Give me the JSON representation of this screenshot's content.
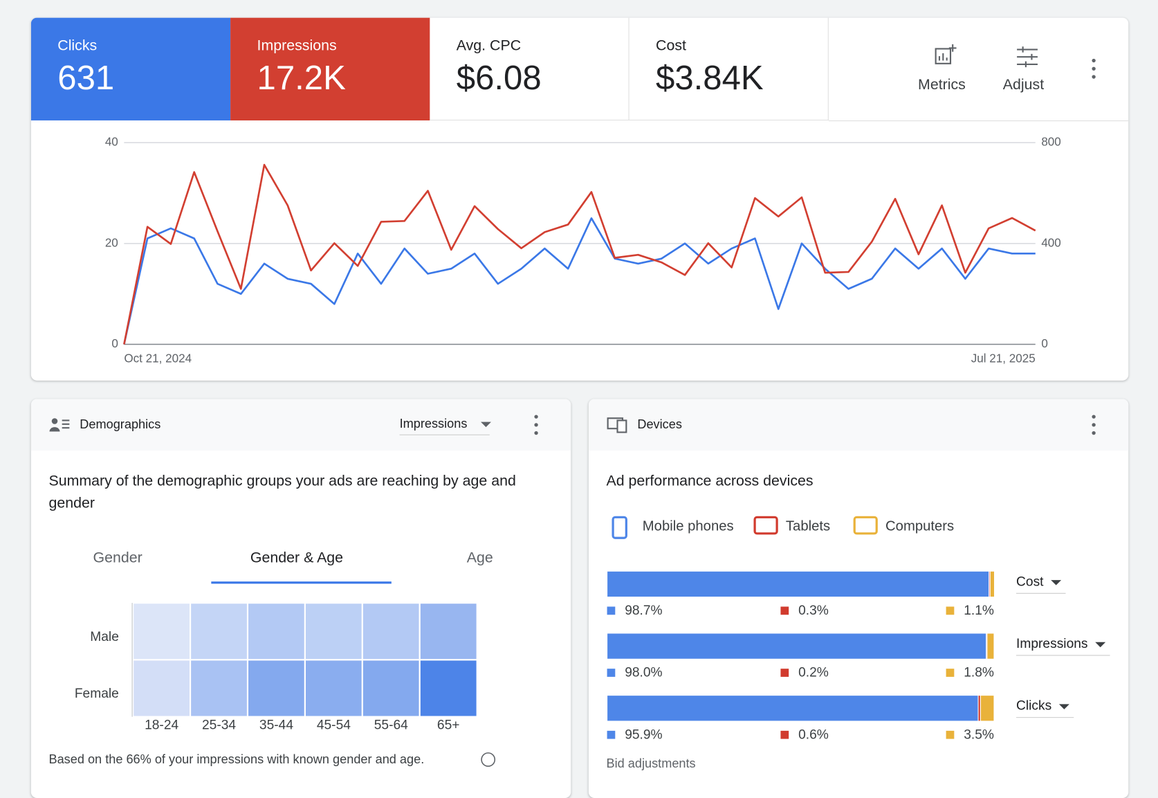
{
  "chart_data": [
    {
      "type": "line",
      "categories": [
        "Oct 21, 2024",
        null,
        null,
        null,
        null,
        null,
        null,
        null,
        null,
        null,
        null,
        null,
        null,
        null,
        null,
        null,
        null,
        null,
        null,
        null,
        null,
        null,
        null,
        null,
        null,
        null,
        null,
        null,
        null,
        null,
        null,
        null,
        null,
        null,
        null,
        null,
        null,
        null,
        null,
        "Jul 21, 2025"
      ],
      "series": [
        {
          "name": "Clicks",
          "total": "631",
          "color": "#3b78e7",
          "axis": "y",
          "values": [
            0,
            21,
            23,
            21,
            12,
            10,
            16,
            13,
            12,
            8,
            18,
            12,
            19,
            14,
            15,
            18,
            12,
            15,
            19,
            15,
            25,
            17,
            16,
            17,
            20,
            16,
            19,
            21,
            7,
            20,
            15,
            11,
            13,
            19,
            15,
            19,
            13,
            19,
            18,
            18
          ]
        },
        {
          "name": "Impressions",
          "total": "17.2K",
          "color": "#d23f31",
          "axis": "y2",
          "values": [
            0,
            466,
            398,
            683,
            448,
            220,
            712,
            551,
            293,
            401,
            311,
            486,
            489,
            609,
            375,
            548,
            457,
            381,
            445,
            475,
            604,
            343,
            355,
            325,
            275,
            401,
            305,
            580,
            507,
            583,
            284,
            287,
            407,
            577,
            357,
            551,
            284,
            460,
            501,
            451
          ]
        }
      ],
      "ylim": [
        0,
        40
      ],
      "yticks": [
        0,
        20,
        40
      ],
      "y2lim": [
        0,
        800
      ],
      "y2ticks": [
        0,
        400,
        800
      ],
      "grid": true
    },
    {
      "type": "heatmap",
      "x": [
        "18-24",
        "25-34",
        "35-44",
        "45-54",
        "55-64",
        "65+"
      ],
      "y": [
        "Male",
        "Female"
      ],
      "colors": [
        [
          "#dce5f8",
          "#c4d5f6",
          "#b3c9f4",
          "#bcd0f5",
          "#b3c9f4",
          "#98b6f0"
        ],
        [
          "#d3def7",
          "#a9c2f3",
          "#84a9ee",
          "#8aadef",
          "#84a9ee",
          "#4d84e8"
        ]
      ]
    },
    {
      "type": "stacked_bar",
      "orientation": "horizontal",
      "categories": [
        "Cost",
        "Impressions",
        "Clicks"
      ],
      "xlim": [
        0,
        100
      ],
      "series": [
        {
          "name": "Mobile phones",
          "color": "#4e86e8",
          "values": [
            98.7,
            98.0,
            95.9
          ],
          "value_labels": [
            "98.7%",
            "98.0%",
            "95.9%"
          ]
        },
        {
          "name": "Tablets",
          "color": "#d13b2e",
          "values": [
            0.3,
            0.2,
            0.6
          ],
          "value_labels": [
            "0.3%",
            "0.2%",
            "0.6%"
          ]
        },
        {
          "name": "Computers",
          "color": "#e9b23a",
          "values": [
            1.1,
            1.8,
            3.5
          ],
          "value_labels": [
            "1.1%",
            "1.8%",
            "3.5%"
          ]
        }
      ]
    }
  ],
  "scorecards": [
    {
      "label": "Avg. CPC",
      "value": "$6.08"
    },
    {
      "label": "Cost",
      "value": "$3.84K"
    }
  ],
  "toolbar": [
    "Metrics",
    "Adjust"
  ],
  "demographics": {
    "title": "Demographics",
    "metric": "Impressions",
    "summary": "Summary of the demographic groups your ads are reaching by age and gender",
    "tabs": [
      "Gender",
      "Gender & Age",
      "Age"
    ],
    "note": "Based on the 66% of your impressions with known gender and age."
  },
  "devices": {
    "title": "Devices",
    "summary": "Ad performance across devices",
    "footer": "Bid adjustments"
  }
}
